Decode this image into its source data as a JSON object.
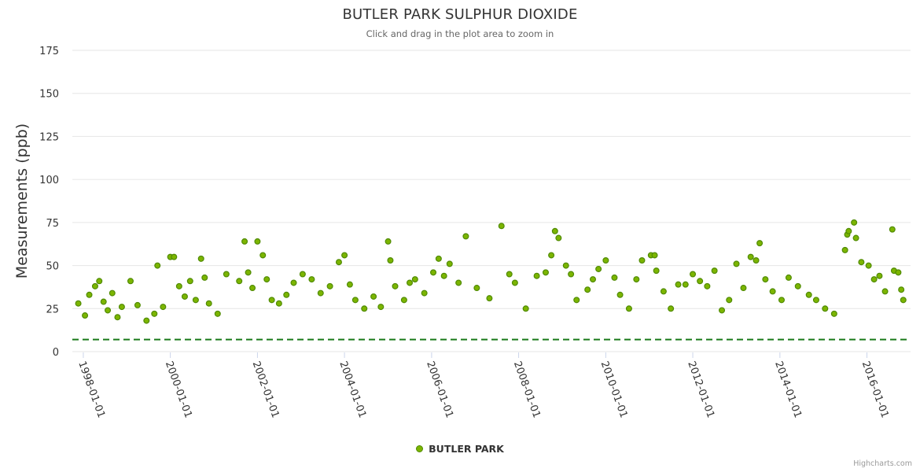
{
  "chart_data": {
    "type": "scatter",
    "title": "BUTLER PARK SULPHUR DIOXIDE",
    "subtitle": "Click and drag in the plot area to zoom in",
    "ylabel": "Measurements (ppb)",
    "xlabel": "",
    "x_range": [
      "1997-10-01",
      "2017-01-01"
    ],
    "ylim": [
      0,
      175
    ],
    "y_ticks": [
      0,
      25,
      50,
      75,
      100,
      125,
      150,
      175
    ],
    "x_tick_labels": [
      "1998-01-01",
      "2000-01-01",
      "2002-01-01",
      "2004-01-01",
      "2006-01-01",
      "2008-01-01",
      "2010-01-01",
      "2012-01-01",
      "2014-01-01",
      "2016-01-01"
    ],
    "grid": "horizontal",
    "legend_position": "bottom-center",
    "reference_line": {
      "value": 7,
      "style": "dashed",
      "color": "#1a7a1a"
    },
    "series": [
      {
        "name": "BUTLER PARK",
        "color": "#7cb500",
        "points": [
          [
            "1997-11-20",
            28
          ],
          [
            "1998-01-15",
            21
          ],
          [
            "1998-02-20",
            33
          ],
          [
            "1998-04-10",
            38
          ],
          [
            "1998-05-15",
            41
          ],
          [
            "1998-06-20",
            29
          ],
          [
            "1998-07-25",
            24
          ],
          [
            "1998-09-01",
            34
          ],
          [
            "1998-10-15",
            20
          ],
          [
            "1998-11-20",
            26
          ],
          [
            "1999-02-01",
            41
          ],
          [
            "1999-04-01",
            27
          ],
          [
            "1999-06-15",
            18
          ],
          [
            "1999-08-20",
            22
          ],
          [
            "1999-09-15",
            50
          ],
          [
            "1999-11-01",
            26
          ],
          [
            "2000-01-01",
            55
          ],
          [
            "2000-02-01",
            55
          ],
          [
            "2000-03-15",
            38
          ],
          [
            "2000-05-01",
            32
          ],
          [
            "2000-06-15",
            41
          ],
          [
            "2000-08-01",
            30
          ],
          [
            "2000-09-15",
            54
          ],
          [
            "2000-10-15",
            43
          ],
          [
            "2000-11-20",
            28
          ],
          [
            "2001-02-01",
            22
          ],
          [
            "2001-04-15",
            45
          ],
          [
            "2001-08-01",
            41
          ],
          [
            "2001-09-15",
            64
          ],
          [
            "2001-10-15",
            46
          ],
          [
            "2001-11-20",
            37
          ],
          [
            "2002-01-01",
            64
          ],
          [
            "2002-02-15",
            56
          ],
          [
            "2002-03-20",
            42
          ],
          [
            "2002-05-01",
            30
          ],
          [
            "2002-07-01",
            28
          ],
          [
            "2002-09-01",
            33
          ],
          [
            "2002-11-01",
            40
          ],
          [
            "2003-01-15",
            45
          ],
          [
            "2003-04-01",
            42
          ],
          [
            "2003-06-15",
            34
          ],
          [
            "2003-09-01",
            38
          ],
          [
            "2003-11-15",
            52
          ],
          [
            "2004-01-01",
            56
          ],
          [
            "2004-02-15",
            39
          ],
          [
            "2004-04-01",
            30
          ],
          [
            "2004-06-15",
            25
          ],
          [
            "2004-09-01",
            32
          ],
          [
            "2004-11-01",
            26
          ],
          [
            "2005-01-01",
            64
          ],
          [
            "2005-01-20",
            53
          ],
          [
            "2005-03-01",
            38
          ],
          [
            "2005-05-15",
            30
          ],
          [
            "2005-07-01",
            40
          ],
          [
            "2005-08-15",
            42
          ],
          [
            "2005-11-01",
            34
          ],
          [
            "2006-01-15",
            46
          ],
          [
            "2006-03-01",
            54
          ],
          [
            "2006-04-15",
            44
          ],
          [
            "2006-06-01",
            51
          ],
          [
            "2006-08-15",
            40
          ],
          [
            "2006-10-15",
            67
          ],
          [
            "2007-01-15",
            37
          ],
          [
            "2007-05-01",
            31
          ],
          [
            "2007-08-10",
            73
          ],
          [
            "2007-10-15",
            45
          ],
          [
            "2007-12-01",
            40
          ],
          [
            "2008-03-01",
            25
          ],
          [
            "2008-06-01",
            44
          ],
          [
            "2008-08-15",
            46
          ],
          [
            "2008-10-01",
            56
          ],
          [
            "2008-11-01",
            70
          ],
          [
            "2008-12-01",
            66
          ],
          [
            "2009-02-01",
            50
          ],
          [
            "2009-03-15",
            45
          ],
          [
            "2009-05-01",
            30
          ],
          [
            "2009-08-01",
            36
          ],
          [
            "2009-09-15",
            42
          ],
          [
            "2009-11-01",
            48
          ],
          [
            "2010-01-01",
            53
          ],
          [
            "2010-03-15",
            43
          ],
          [
            "2010-05-01",
            33
          ],
          [
            "2010-07-15",
            25
          ],
          [
            "2010-09-15",
            42
          ],
          [
            "2010-11-01",
            53
          ],
          [
            "2011-01-15",
            56
          ],
          [
            "2011-02-15",
            56
          ],
          [
            "2011-03-01",
            47
          ],
          [
            "2011-05-01",
            35
          ],
          [
            "2011-07-01",
            25
          ],
          [
            "2011-09-01",
            39
          ],
          [
            "2011-11-01",
            39
          ],
          [
            "2012-01-01",
            45
          ],
          [
            "2012-03-01",
            41
          ],
          [
            "2012-05-01",
            38
          ],
          [
            "2012-07-01",
            47
          ],
          [
            "2012-09-01",
            24
          ],
          [
            "2012-11-01",
            30
          ],
          [
            "2013-01-01",
            51
          ],
          [
            "2013-03-01",
            37
          ],
          [
            "2013-05-01",
            55
          ],
          [
            "2013-06-15",
            53
          ],
          [
            "2013-07-15",
            63
          ],
          [
            "2013-09-01",
            42
          ],
          [
            "2013-11-01",
            35
          ],
          [
            "2014-01-15",
            30
          ],
          [
            "2014-03-15",
            43
          ],
          [
            "2014-06-01",
            38
          ],
          [
            "2014-09-01",
            33
          ],
          [
            "2014-11-01",
            30
          ],
          [
            "2015-01-15",
            25
          ],
          [
            "2015-04-01",
            22
          ],
          [
            "2015-07-01",
            59
          ],
          [
            "2015-07-20",
            68
          ],
          [
            "2015-08-01",
            70
          ],
          [
            "2015-09-15",
            75
          ],
          [
            "2015-10-01",
            66
          ],
          [
            "2015-11-15",
            52
          ],
          [
            "2016-01-15",
            50
          ],
          [
            "2016-03-01",
            42
          ],
          [
            "2016-04-15",
            44
          ],
          [
            "2016-06-01",
            35
          ],
          [
            "2016-08-01",
            71
          ],
          [
            "2016-08-15",
            47
          ],
          [
            "2016-09-20",
            46
          ],
          [
            "2016-10-15",
            36
          ],
          [
            "2016-11-01",
            30
          ]
        ]
      }
    ]
  },
  "legend": {
    "label": "BUTLER PARK"
  },
  "credits": "Highcharts.com"
}
